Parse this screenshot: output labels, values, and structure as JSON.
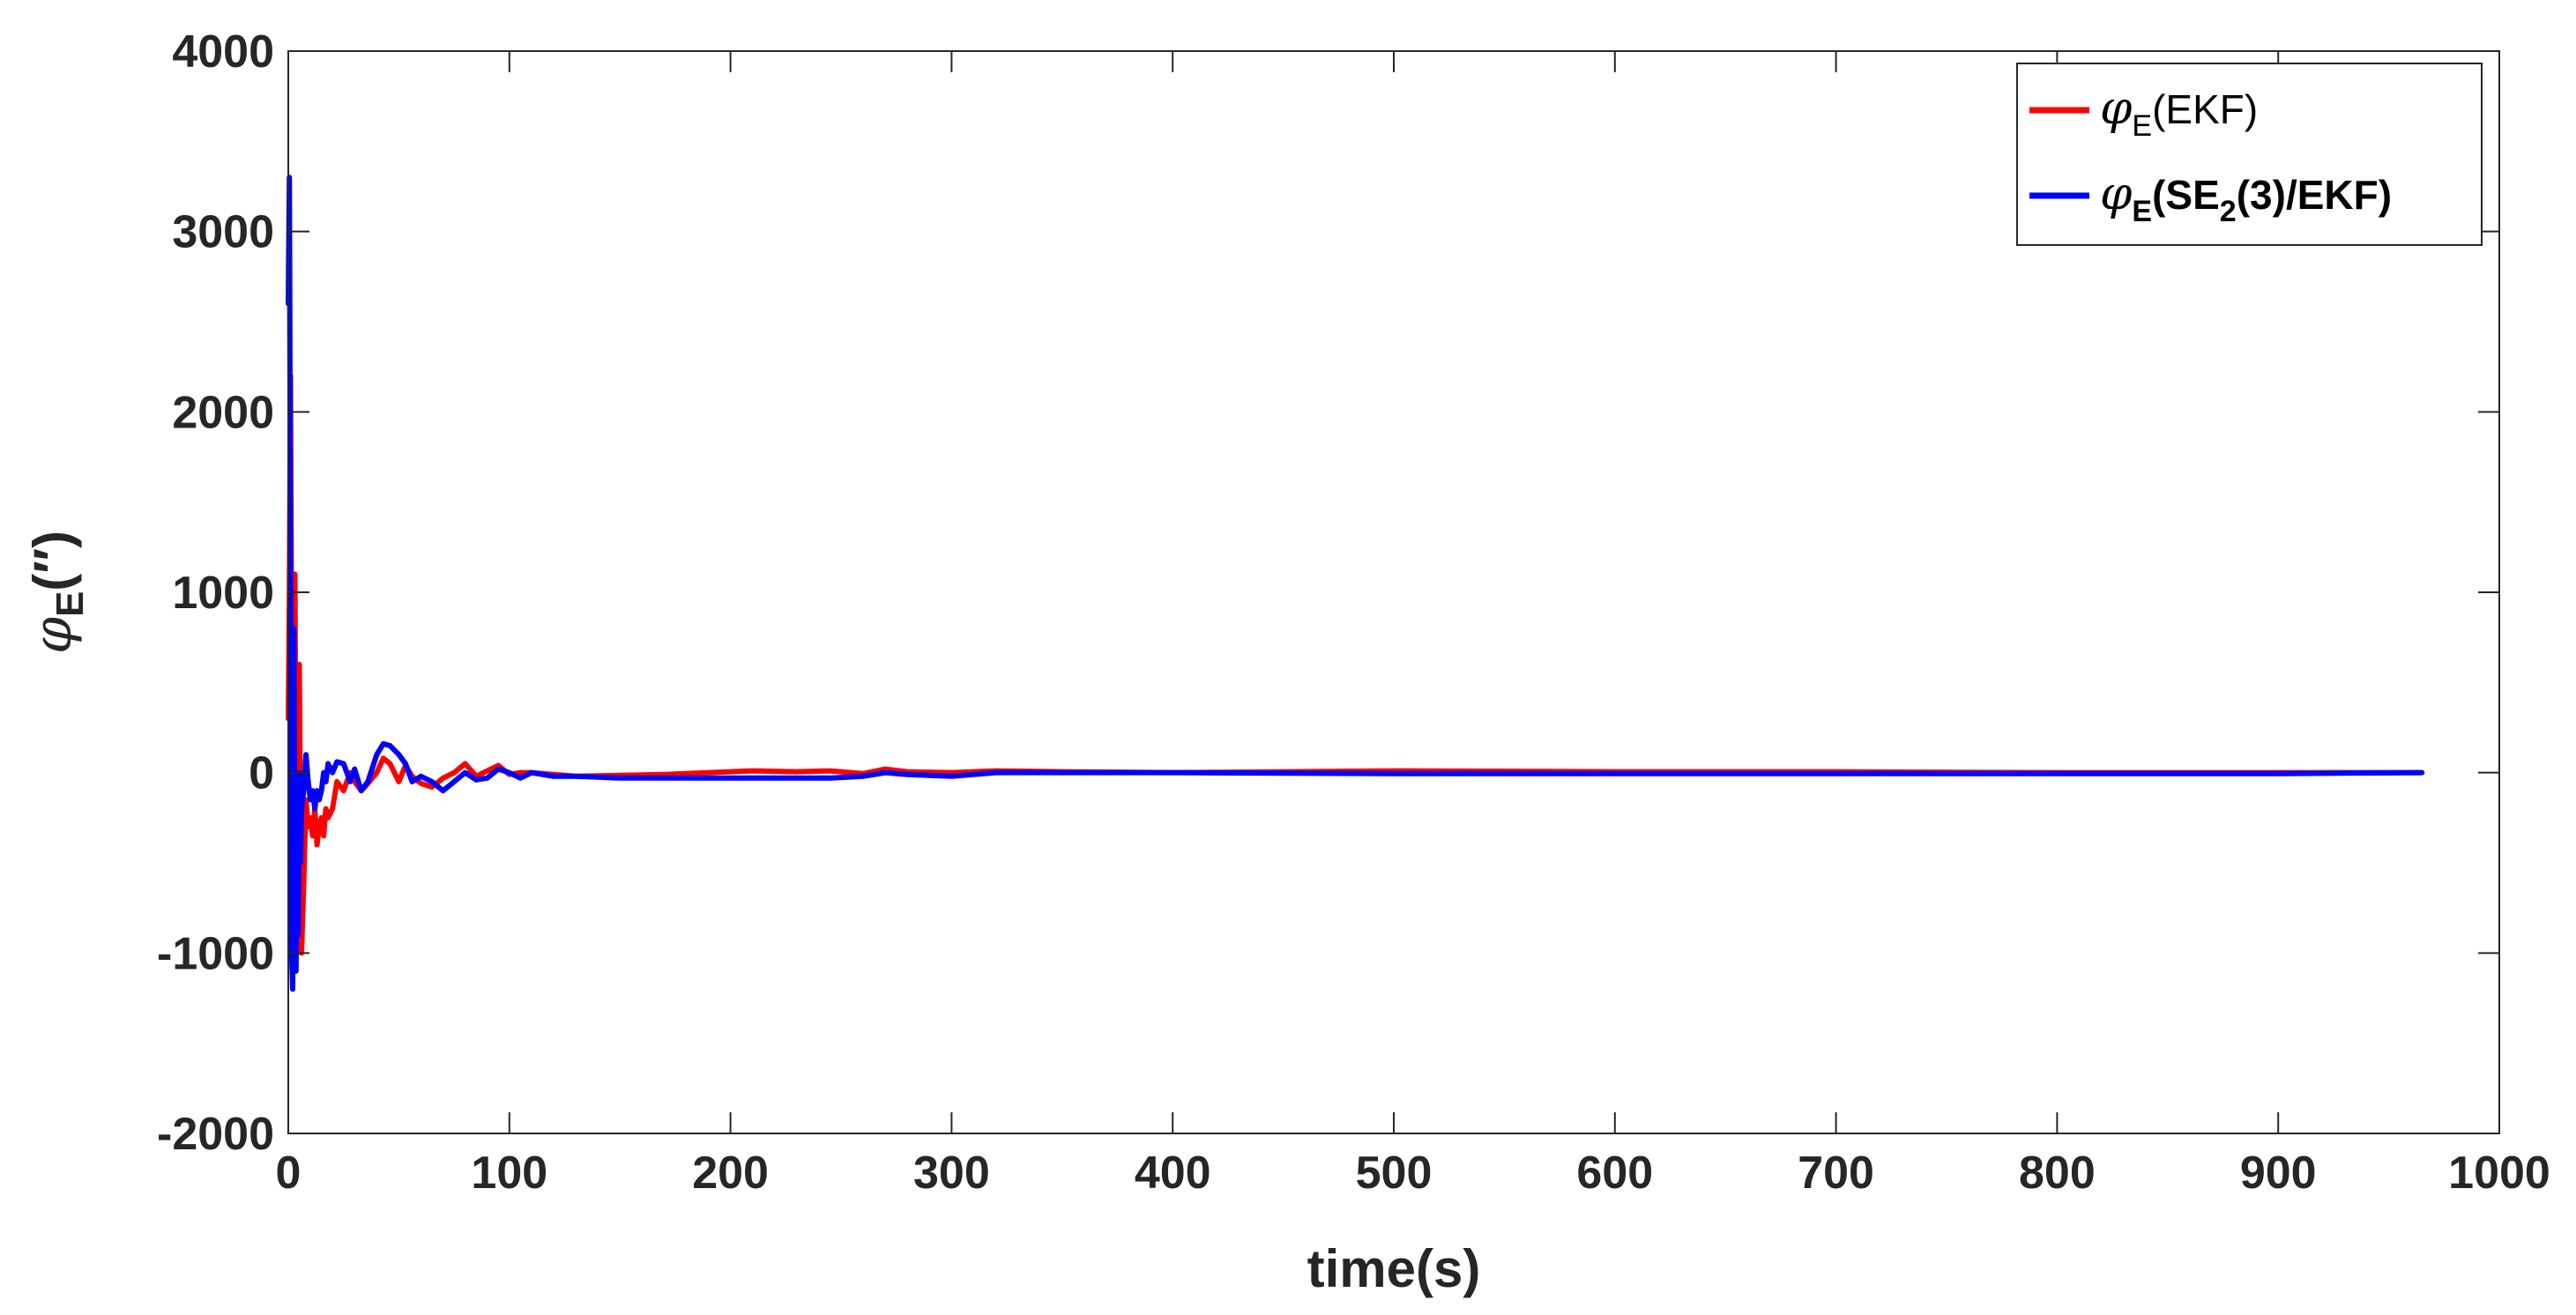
{
  "chart_data": {
    "type": "line",
    "title": "",
    "xlabel": "time(s)",
    "ylabel": {
      "symbol": "φ",
      "sub": "E",
      "unit": "(′′)"
    },
    "xlim": [
      0,
      1000
    ],
    "ylim": [
      -2000,
      4000
    ],
    "xticks": [
      0,
      100,
      200,
      300,
      400,
      500,
      600,
      700,
      800,
      900,
      1000
    ],
    "yticks": [
      -2000,
      -1000,
      0,
      1000,
      2000,
      3000,
      4000
    ],
    "xtick_labels": [
      "0",
      "100",
      "200",
      "300",
      "400",
      "500",
      "600",
      "700",
      "800",
      "900",
      "1000"
    ],
    "ytick_labels": [
      "-2000",
      "-1000",
      "0",
      "1000",
      "2000",
      "3000",
      "4000"
    ],
    "grid": false,
    "legend_position": "top-right",
    "series": [
      {
        "name": "φE(EKF)",
        "legend": {
          "symbol": "φ",
          "sub": "E",
          "text": "(EKF)"
        },
        "color": "#ff0000",
        "x": [
          0,
          0.5,
          1,
          1.5,
          2,
          2.5,
          3,
          3.5,
          4,
          4.5,
          5,
          5.5,
          6,
          7,
          8,
          9,
          10,
          11,
          12,
          13,
          14,
          15,
          16,
          17,
          18,
          20,
          22,
          25,
          28,
          30,
          33,
          36,
          40,
          43,
          46,
          50,
          53,
          56,
          60,
          65,
          70,
          75,
          80,
          85,
          90,
          95,
          100,
          105,
          110,
          120,
          130,
          150,
          170,
          190,
          210,
          230,
          245,
          260,
          270,
          280,
          300,
          320,
          350,
          400,
          500,
          600,
          700,
          800,
          900,
          965
        ],
        "y": [
          300,
          1000,
          2200,
          700,
          -1200,
          200,
          1100,
          -200,
          -1000,
          200,
          600,
          -300,
          -1000,
          -600,
          -150,
          -300,
          -250,
          -350,
          -200,
          -400,
          -300,
          -250,
          -350,
          -200,
          -250,
          -200,
          -50,
          -100,
          0,
          -50,
          -100,
          -60,
          0,
          80,
          50,
          -50,
          40,
          -20,
          -60,
          -80,
          -30,
          0,
          50,
          -20,
          10,
          40,
          -10,
          0,
          0,
          -10,
          -20,
          -15,
          -10,
          0,
          10,
          5,
          10,
          -5,
          20,
          5,
          0,
          10,
          5,
          0,
          10,
          5,
          5,
          0,
          0,
          0
        ]
      },
      {
        "name": "φE(SE2(3)/EKF)",
        "legend": {
          "symbol": "φ",
          "sub": "E",
          "text": "(SE",
          "sub2": "2",
          "text2": "(3)/EKF)"
        },
        "color": "#0000ff",
        "x": [
          0,
          0.5,
          1,
          1.5,
          2,
          2.5,
          3,
          3.5,
          4,
          4.5,
          5,
          5.5,
          6,
          7,
          8,
          9,
          10,
          11,
          12,
          13,
          14,
          15,
          16,
          17,
          18,
          20,
          22,
          25,
          28,
          30,
          33,
          36,
          40,
          43,
          46,
          50,
          53,
          56,
          60,
          65,
          70,
          75,
          80,
          85,
          90,
          95,
          100,
          105,
          110,
          120,
          130,
          150,
          170,
          190,
          210,
          230,
          245,
          260,
          270,
          280,
          300,
          320,
          350,
          400,
          500,
          600,
          700,
          800,
          900,
          965
        ],
        "y": [
          2600,
          3300,
          1200,
          -1000,
          -1200,
          800,
          -300,
          -1100,
          -200,
          -900,
          0,
          -500,
          -200,
          -100,
          100,
          -50,
          -150,
          -100,
          -200,
          -100,
          -150,
          -100,
          0,
          -50,
          50,
          0,
          60,
          50,
          -50,
          20,
          -100,
          -50,
          100,
          160,
          150,
          100,
          50,
          -50,
          -20,
          -50,
          -100,
          -50,
          0,
          -40,
          -30,
          20,
          0,
          -30,
          0,
          -20,
          -20,
          -30,
          -30,
          -30,
          -30,
          -30,
          -30,
          -20,
          0,
          -10,
          -20,
          0,
          0,
          0,
          -5,
          -5,
          -5,
          -5,
          -5,
          0
        ]
      }
    ]
  }
}
